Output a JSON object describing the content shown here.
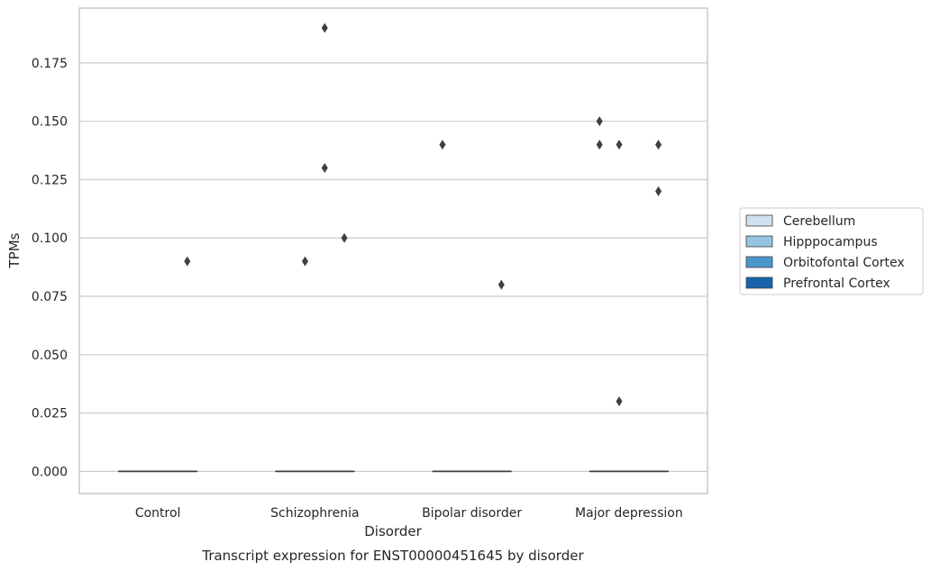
{
  "chart_data": {
    "type": "box",
    "title": "Transcript expression for ENST00000451645 by disorder",
    "xlabel": "Disorder",
    "ylabel": "TPMs",
    "categories": [
      "Control",
      "Schizophrenia",
      "Bipolar disorder",
      "Major depression"
    ],
    "ylim": [
      -0.0095,
      0.1985
    ],
    "yticks": [
      0.0,
      0.025,
      0.05,
      0.075,
      0.1,
      0.125,
      0.15,
      0.175
    ],
    "ytick_labels": [
      "0.000",
      "0.025",
      "0.050",
      "0.075",
      "0.100",
      "0.125",
      "0.150",
      "0.175"
    ],
    "grid": "horizontal",
    "legend_position": "right",
    "series": [
      {
        "name": "Cerebellum",
        "color": "#d0e1f2",
        "boxes": [
          {
            "median": 0,
            "q1": 0,
            "q3": 0,
            "outliers": []
          },
          {
            "median": 0,
            "q1": 0,
            "q3": 0,
            "outliers": []
          },
          {
            "median": 0,
            "q1": 0,
            "q3": 0,
            "outliers": [
              0.14
            ]
          },
          {
            "median": 0,
            "q1": 0,
            "q3": 0,
            "outliers": [
              0.15,
              0.14
            ]
          }
        ]
      },
      {
        "name": "Hipppocampus",
        "color": "#94c4df",
        "boxes": [
          {
            "median": 0,
            "q1": 0,
            "q3": 0,
            "outliers": []
          },
          {
            "median": 0,
            "q1": 0,
            "q3": 0,
            "outliers": [
              0.09
            ]
          },
          {
            "median": 0,
            "q1": 0,
            "q3": 0,
            "outliers": []
          },
          {
            "median": 0,
            "q1": 0,
            "q3": 0,
            "outliers": [
              0.14,
              0.03
            ]
          }
        ]
      },
      {
        "name": "Orbitofontal Cortex",
        "color": "#4a98c9",
        "boxes": [
          {
            "median": 0,
            "q1": 0,
            "q3": 0,
            "outliers": []
          },
          {
            "median": 0,
            "q1": 0,
            "q3": 0,
            "outliers": [
              0.19,
              0.13
            ]
          },
          {
            "median": 0,
            "q1": 0,
            "q3": 0,
            "outliers": []
          },
          {
            "median": 0,
            "q1": 0,
            "q3": 0,
            "outliers": []
          }
        ]
      },
      {
        "name": "Prefrontal Cortex",
        "color": "#1764ab",
        "boxes": [
          {
            "median": 0,
            "q1": 0,
            "q3": 0,
            "outliers": [
              0.09
            ]
          },
          {
            "median": 0,
            "q1": 0,
            "q3": 0,
            "outliers": [
              0.1
            ]
          },
          {
            "median": 0,
            "q1": 0,
            "q3": 0,
            "outliers": [
              0.08
            ]
          },
          {
            "median": 0,
            "q1": 0,
            "q3": 0,
            "outliers": [
              0.14,
              0.12
            ]
          }
        ]
      }
    ]
  }
}
